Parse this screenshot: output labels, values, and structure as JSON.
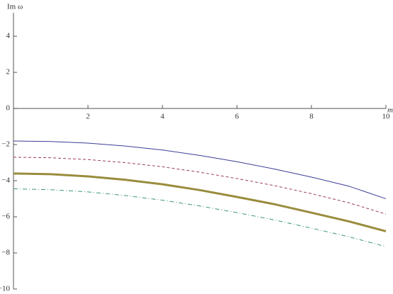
{
  "chart_data": {
    "type": "line",
    "x_label": "m",
    "y_label": "Im ω",
    "x": [
      0,
      1,
      2,
      3,
      4,
      5,
      6,
      7,
      8,
      9,
      10
    ],
    "series": [
      {
        "color": "#3d3d99",
        "style": "solid",
        "values": [
          -1.8,
          -1.83,
          -1.92,
          -2.08,
          -2.3,
          -2.6,
          -2.95,
          -3.35,
          -3.8,
          -4.3,
          -5.0
        ]
      },
      {
        "color": "#993d5c",
        "style": "dashed",
        "values": [
          -2.7,
          -2.73,
          -2.83,
          -3.0,
          -3.23,
          -3.53,
          -3.88,
          -4.27,
          -4.72,
          -5.22,
          -5.85
        ]
      },
      {
        "color": "#998c3d",
        "style": "thick",
        "values": [
          -3.6,
          -3.64,
          -3.76,
          -3.95,
          -4.2,
          -4.52,
          -4.9,
          -5.3,
          -5.77,
          -6.25,
          -6.8
        ]
      },
      {
        "color": "#3d9970",
        "style": "dashdot",
        "values": [
          -4.45,
          -4.5,
          -4.62,
          -4.82,
          -5.08,
          -5.4,
          -5.77,
          -6.17,
          -6.63,
          -7.1,
          -7.65
        ]
      }
    ],
    "xlim": [
      0,
      10
    ],
    "xticks": [
      2,
      4,
      6,
      8,
      10
    ],
    "ylim": [
      -10,
      5.3
    ],
    "yticks": [
      {
        "value": -10,
        "label": "−10"
      },
      {
        "value": -8,
        "label": "−8"
      },
      {
        "value": -6,
        "label": "−6"
      },
      {
        "value": -4,
        "label": "−4"
      },
      {
        "value": -2,
        "label": "−2"
      },
      0,
      2,
      4
    ],
    "grid": false
  }
}
